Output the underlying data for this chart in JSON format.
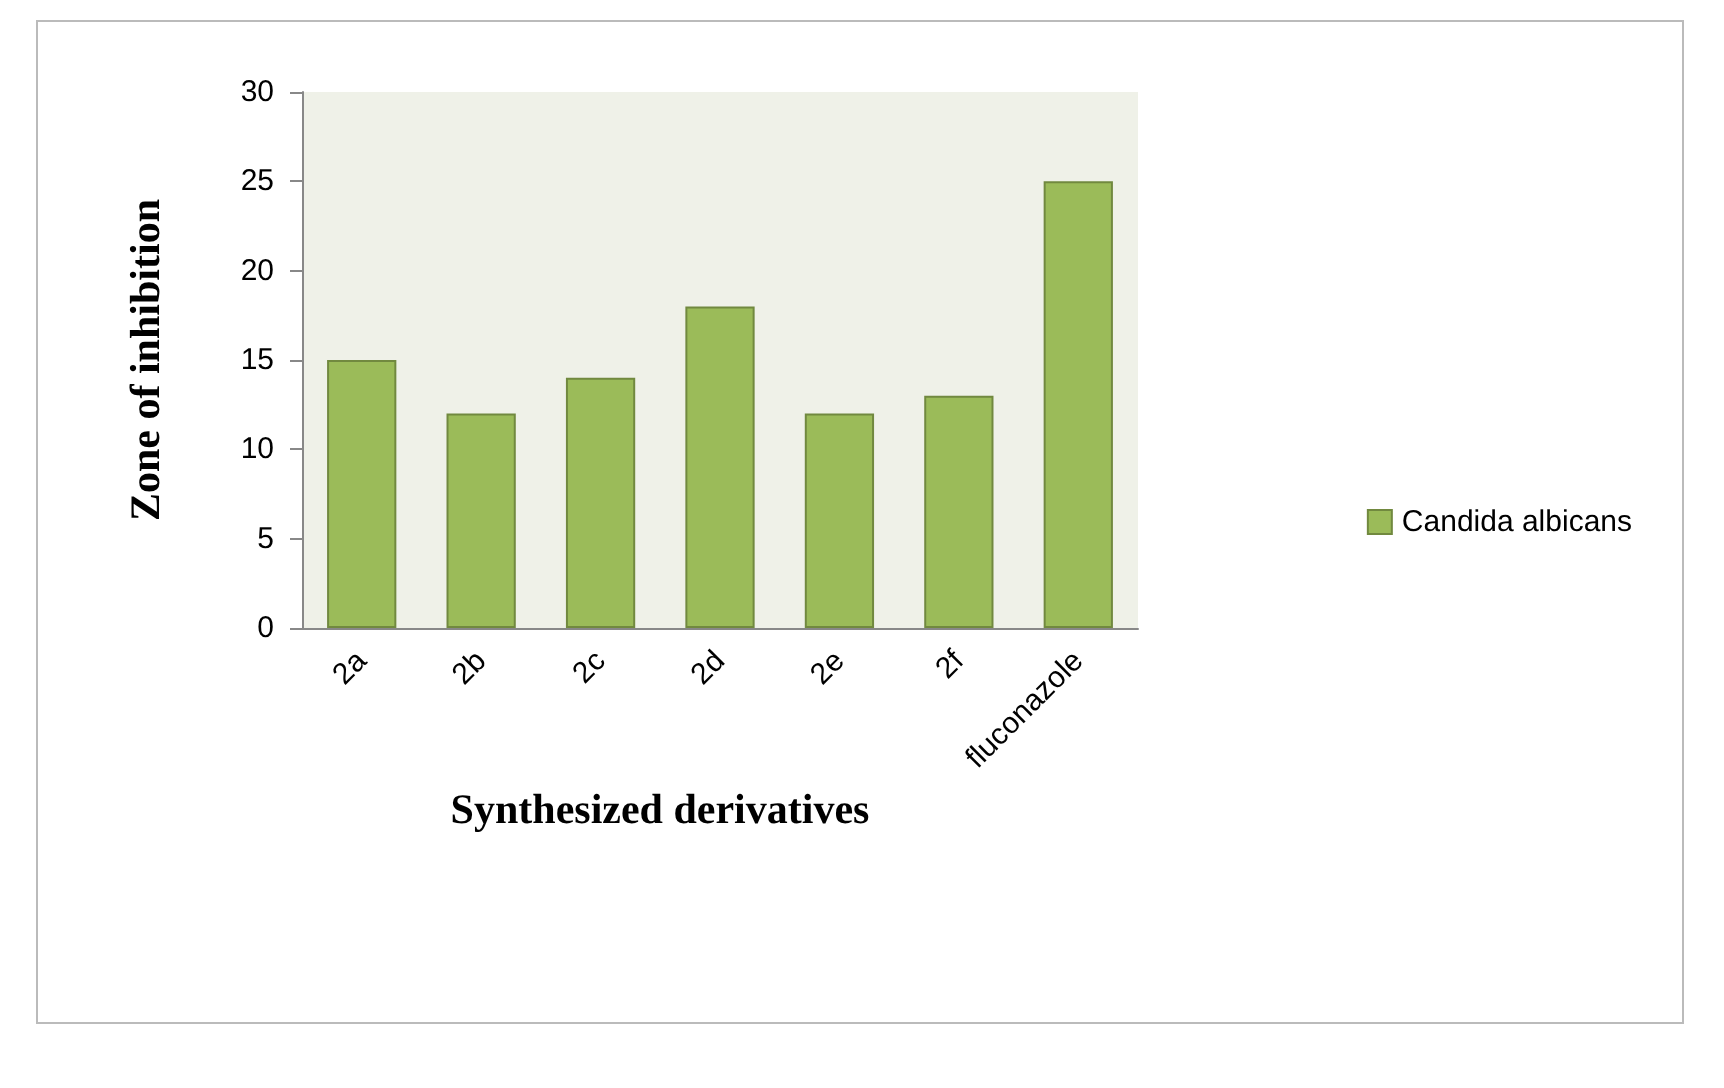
{
  "chart_data": {
    "type": "bar",
    "xlabel": "Synthesized derivatives",
    "ylabel": "Zone of inhibition",
    "categories": [
      "2a",
      "2b",
      "2c",
      "2d",
      "2e",
      "2f",
      "fluconazole"
    ],
    "series": [
      {
        "name": "Candida albicans",
        "color": "#9bbb59",
        "values": [
          15,
          12,
          14,
          18,
          12,
          13,
          25
        ]
      }
    ],
    "ylim": [
      0,
      30
    ],
    "yticks": [
      0,
      5,
      10,
      15,
      20,
      25,
      30
    ],
    "grid": false,
    "legend": "right"
  }
}
